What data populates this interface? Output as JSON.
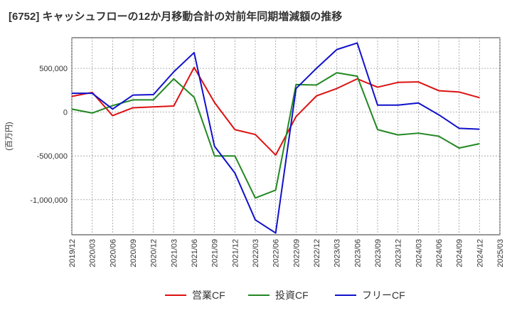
{
  "chart_data": {
    "type": "line",
    "title": "[6752]  キャッシュフローの12か月移動合計の対前年同期増減額の推移",
    "ylabel": "(百万円)",
    "xlabel": "",
    "ylim": [
      -1400000,
      850000
    ],
    "yticks": [
      -1000000,
      -500000,
      0,
      500000
    ],
    "ytick_labels": [
      "-1,000,000",
      "-500,000",
      "0",
      "500,000"
    ],
    "x": [
      "2019/12",
      "2020/03",
      "2020/06",
      "2020/09",
      "2020/12",
      "2021/03",
      "2021/06",
      "2021/09",
      "2021/12",
      "2022/03",
      "2022/06",
      "2022/09",
      "2022/12",
      "2023/03",
      "2023/06",
      "2023/09",
      "2023/12",
      "2024/03",
      "2024/06",
      "2024/09",
      "2024/12",
      "2025/03"
    ],
    "series": [
      {
        "name": "営業CF",
        "color": "#dd1111",
        "values": [
          180000,
          225000,
          -40000,
          50000,
          60000,
          70000,
          510000,
          110000,
          -200000,
          -255000,
          -490000,
          -50000,
          185000,
          270000,
          380000,
          285000,
          340000,
          345000,
          245000,
          230000,
          165000,
          null
        ]
      },
      {
        "name": "投資CF",
        "color": "#228822",
        "values": [
          35000,
          -10000,
          75000,
          140000,
          140000,
          380000,
          170000,
          -500000,
          -500000,
          -980000,
          -890000,
          315000,
          310000,
          450000,
          410000,
          -200000,
          -260000,
          -240000,
          -275000,
          -410000,
          -360000,
          null
        ]
      },
      {
        "name": "フリーCF",
        "color": "#1111cc",
        "values": [
          215000,
          215000,
          35000,
          195000,
          200000,
          460000,
          680000,
          -390000,
          -695000,
          -1230000,
          -1380000,
          270000,
          500000,
          715000,
          790000,
          80000,
          80000,
          105000,
          -30000,
          -185000,
          -195000,
          null
        ]
      }
    ],
    "grid": true,
    "legend": "bottom"
  }
}
